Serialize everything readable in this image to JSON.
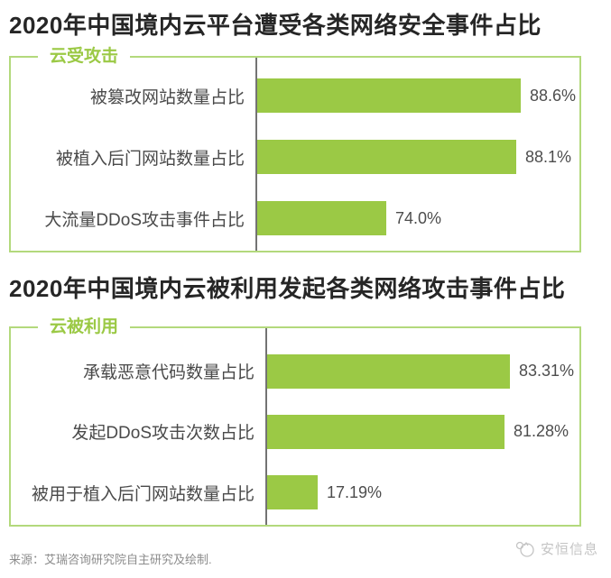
{
  "page": {
    "background": "#ffffff",
    "accent_green": "#9bc945",
    "border_green": "#b3d97c",
    "axis_gray": "#737373",
    "title_color": "#262626",
    "label_color": "#4a4a4a",
    "footer_color": "#8c8c8c",
    "watermark_color": "#c4c4c4"
  },
  "chart_data": [
    {
      "type": "bar",
      "orientation": "horizontal",
      "title": "2020年中国境内云平台遭受各类网络安全事件占比",
      "group_label": "云受攻击",
      "categories": [
        "被篡改网站数量占比",
        "被植入后门网站数量占比",
        "大流量DDoS攻击事件占比"
      ],
      "values": [
        88.6,
        88.1,
        74.0
      ],
      "value_labels": [
        "88.6%",
        "88.1%",
        "74.0%"
      ],
      "xlim": [
        60,
        95
      ],
      "bar_color": "#9bc945",
      "grid": false,
      "legend_position": "top-left-on-border"
    },
    {
      "type": "bar",
      "orientation": "horizontal",
      "title": "2020年中国境内云被利用发起各类网络攻击事件占比",
      "group_label": "云被利用",
      "categories": [
        "承载恶意代码数量占比",
        "发起DDoS攻击次数占比",
        "被用于植入后门网站数量占比"
      ],
      "values": [
        83.31,
        81.28,
        17.19
      ],
      "value_labels": [
        "83.31%",
        "81.28%",
        "17.19%"
      ],
      "xlim": [
        0,
        100
      ],
      "bar_color": "#9bc945",
      "grid": false,
      "legend_position": "top-left-on-border"
    }
  ],
  "footer": {
    "source_note": "来源：艾瑞咨询研究院自主研究及绘制."
  },
  "watermark": {
    "label": "安恒信息"
  }
}
